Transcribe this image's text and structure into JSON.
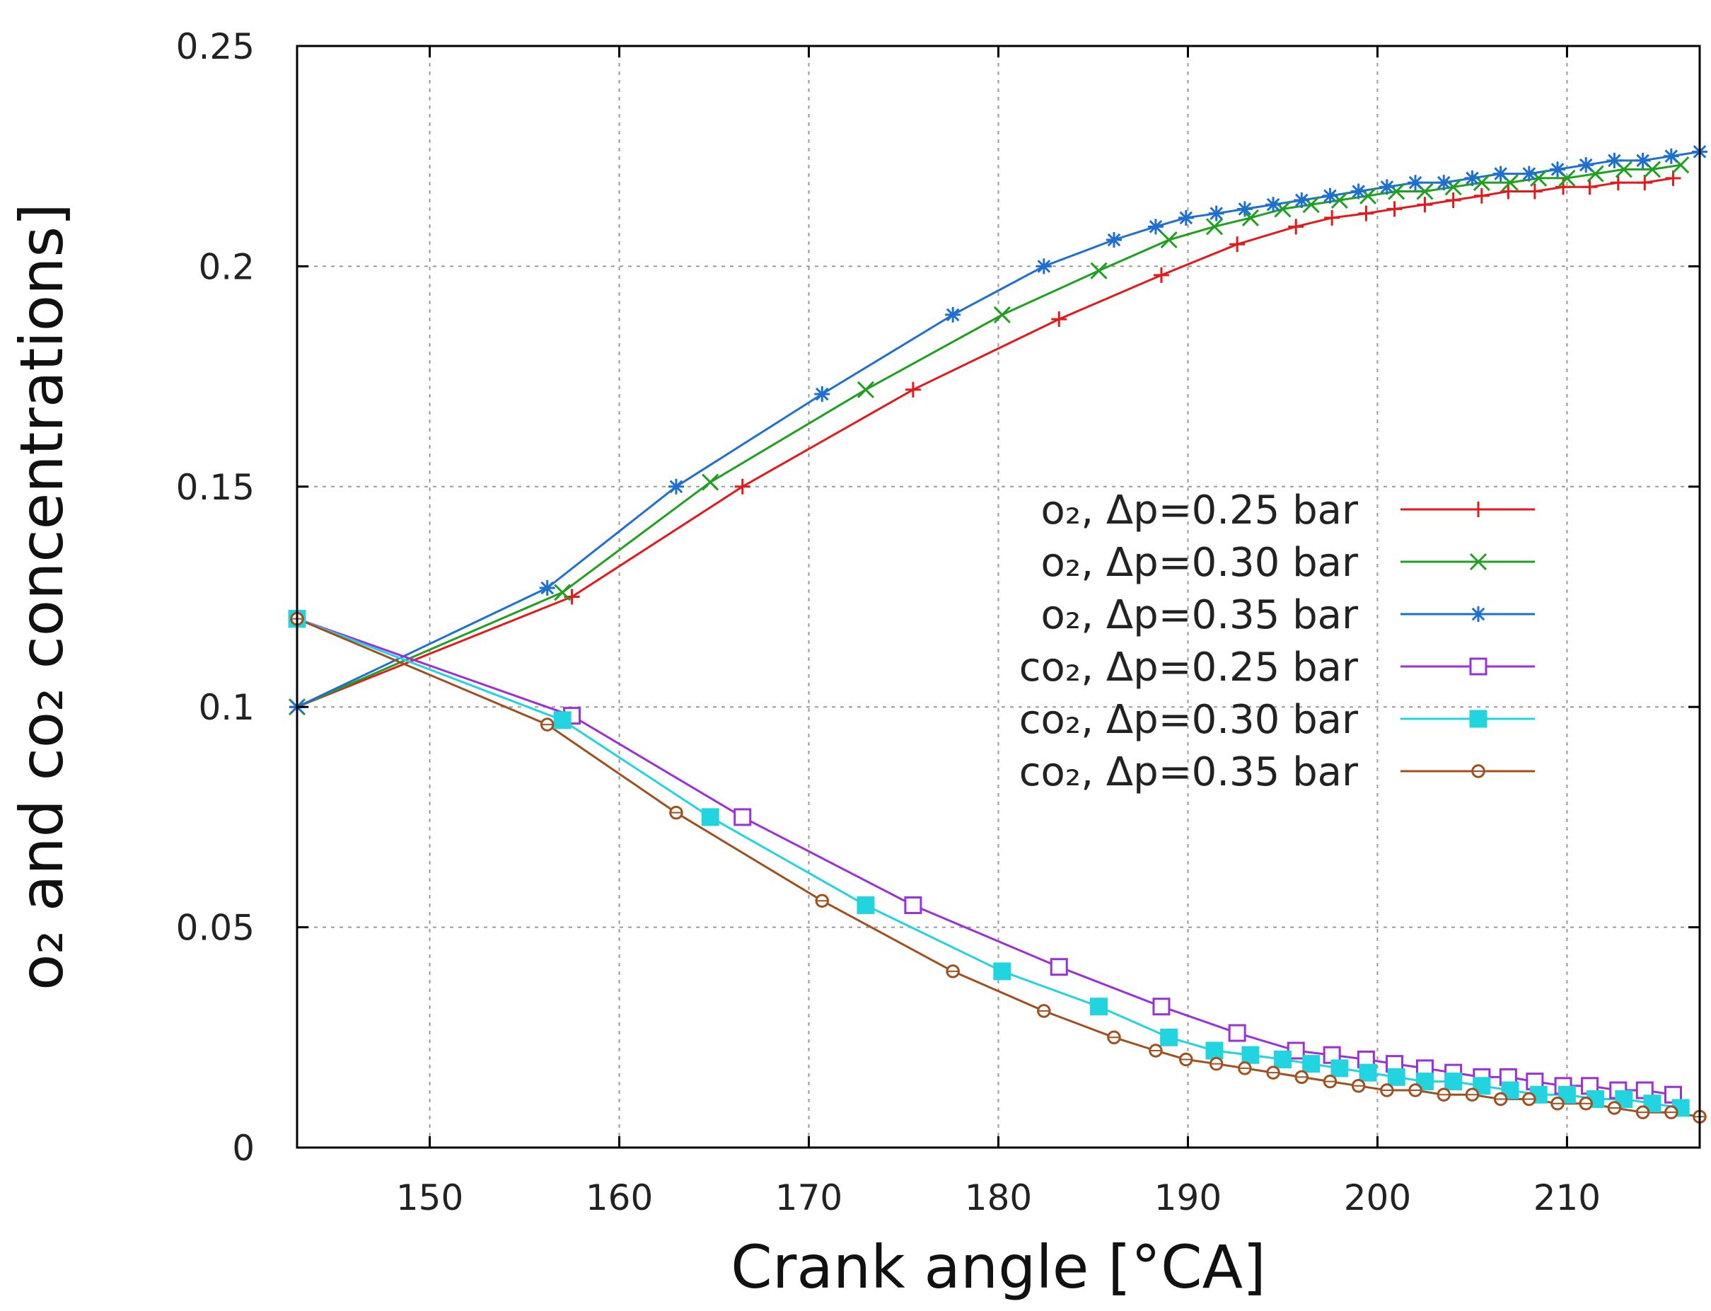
{
  "chart_data": {
    "type": "line",
    "xlabel": "Crank angle [°CA]",
    "ylabel": "o₂ and co₂ concentrations]",
    "xlim": [
      143,
      217
    ],
    "ylim": [
      0,
      0.25
    ],
    "xticks": [
      150,
      160,
      170,
      180,
      190,
      200,
      210
    ],
    "yticks": [
      0,
      0.05,
      0.1,
      0.15,
      0.2,
      0.25
    ],
    "xtick_labels": [
      "150",
      "160",
      "170",
      "180",
      "190",
      "200",
      "210"
    ],
    "ytick_labels": [
      "0",
      "0.05",
      "0.1",
      "0.15",
      "0.2",
      "0.25"
    ],
    "grid": true,
    "legend_position": "center-right",
    "series": [
      {
        "name": "o₂, Δp=0.25 bar",
        "color": "#e31a1c",
        "marker": "plus",
        "x": [
          143.0,
          157.5,
          166.5,
          175.5,
          183.2,
          188.6,
          192.6,
          195.7,
          197.6,
          199.4,
          200.9,
          202.5,
          204.0,
          205.5,
          206.9,
          208.3,
          209.8,
          211.2,
          212.7,
          214.1,
          215.6
        ],
        "y": [
          0.1,
          0.125,
          0.15,
          0.172,
          0.188,
          0.198,
          0.205,
          0.209,
          0.211,
          0.212,
          0.213,
          0.214,
          0.215,
          0.216,
          0.217,
          0.217,
          0.218,
          0.218,
          0.219,
          0.219,
          0.22
        ]
      },
      {
        "name": "o₂, Δp=0.30 bar",
        "color": "#1fa01f",
        "marker": "cross",
        "x": [
          143.0,
          157.0,
          164.8,
          173.0,
          180.2,
          185.3,
          189.0,
          191.4,
          193.3,
          195.0,
          196.5,
          198.0,
          199.5,
          201.0,
          202.5,
          204.0,
          205.5,
          207.0,
          208.5,
          210.0,
          211.5,
          213.0,
          214.5,
          216.0
        ],
        "y": [
          0.1,
          0.126,
          0.151,
          0.172,
          0.189,
          0.199,
          0.206,
          0.209,
          0.211,
          0.213,
          0.214,
          0.215,
          0.216,
          0.217,
          0.217,
          0.218,
          0.219,
          0.219,
          0.22,
          0.22,
          0.221,
          0.222,
          0.222,
          0.223
        ]
      },
      {
        "name": "o₂, Δp=0.35 bar",
        "color": "#1e6fd0",
        "marker": "star",
        "x": [
          143.0,
          156.2,
          163.0,
          170.7,
          177.6,
          182.4,
          186.1,
          188.3,
          189.9,
          191.5,
          193.0,
          194.5,
          196.0,
          197.5,
          199.0,
          200.5,
          202.0,
          203.5,
          205.0,
          206.5,
          208.0,
          209.5,
          211.0,
          212.5,
          214.0,
          215.5,
          217.0
        ],
        "y": [
          0.1,
          0.127,
          0.15,
          0.171,
          0.189,
          0.2,
          0.206,
          0.209,
          0.211,
          0.212,
          0.213,
          0.214,
          0.215,
          0.216,
          0.217,
          0.218,
          0.219,
          0.219,
          0.22,
          0.221,
          0.221,
          0.222,
          0.223,
          0.224,
          0.224,
          0.225,
          0.226
        ]
      },
      {
        "name": "co₂, Δp=0.25 bar",
        "color": "#9b30d9",
        "marker": "open-square",
        "x": [
          143.0,
          157.5,
          166.5,
          175.5,
          183.2,
          188.6,
          192.6,
          195.7,
          197.6,
          199.4,
          200.9,
          202.5,
          204.0,
          205.5,
          206.9,
          208.3,
          209.8,
          211.2,
          212.7,
          214.1,
          215.6
        ],
        "y": [
          0.12,
          0.098,
          0.075,
          0.055,
          0.041,
          0.032,
          0.026,
          0.022,
          0.021,
          0.02,
          0.019,
          0.018,
          0.017,
          0.016,
          0.016,
          0.015,
          0.014,
          0.014,
          0.013,
          0.013,
          0.012
        ]
      },
      {
        "name": "co₂, Δp=0.30 bar",
        "color": "#22d3e0",
        "marker": "filled-square",
        "x": [
          143.0,
          157.0,
          164.8,
          173.0,
          180.2,
          185.3,
          189.0,
          191.4,
          193.3,
          195.0,
          196.5,
          198.0,
          199.5,
          201.0,
          202.5,
          204.0,
          205.5,
          207.0,
          208.5,
          210.0,
          211.5,
          213.0,
          214.5,
          216.0
        ],
        "y": [
          0.12,
          0.097,
          0.075,
          0.055,
          0.04,
          0.032,
          0.025,
          0.022,
          0.021,
          0.02,
          0.019,
          0.018,
          0.017,
          0.016,
          0.015,
          0.015,
          0.014,
          0.013,
          0.012,
          0.012,
          0.011,
          0.011,
          0.01,
          0.009
        ]
      },
      {
        "name": "co₂, Δp=0.35 bar",
        "color": "#a0501e",
        "marker": "open-circle",
        "x": [
          143.0,
          156.2,
          163.0,
          170.7,
          177.6,
          182.4,
          186.1,
          188.3,
          189.9,
          191.5,
          193.0,
          194.5,
          196.0,
          197.5,
          199.0,
          200.5,
          202.0,
          203.5,
          205.0,
          206.5,
          208.0,
          209.5,
          211.0,
          212.5,
          214.0,
          215.5,
          217.0
        ],
        "y": [
          0.12,
          0.096,
          0.076,
          0.056,
          0.04,
          0.031,
          0.025,
          0.022,
          0.02,
          0.019,
          0.018,
          0.017,
          0.016,
          0.015,
          0.014,
          0.013,
          0.013,
          0.012,
          0.012,
          0.011,
          0.011,
          0.01,
          0.01,
          0.009,
          0.008,
          0.008,
          0.007
        ]
      }
    ]
  }
}
